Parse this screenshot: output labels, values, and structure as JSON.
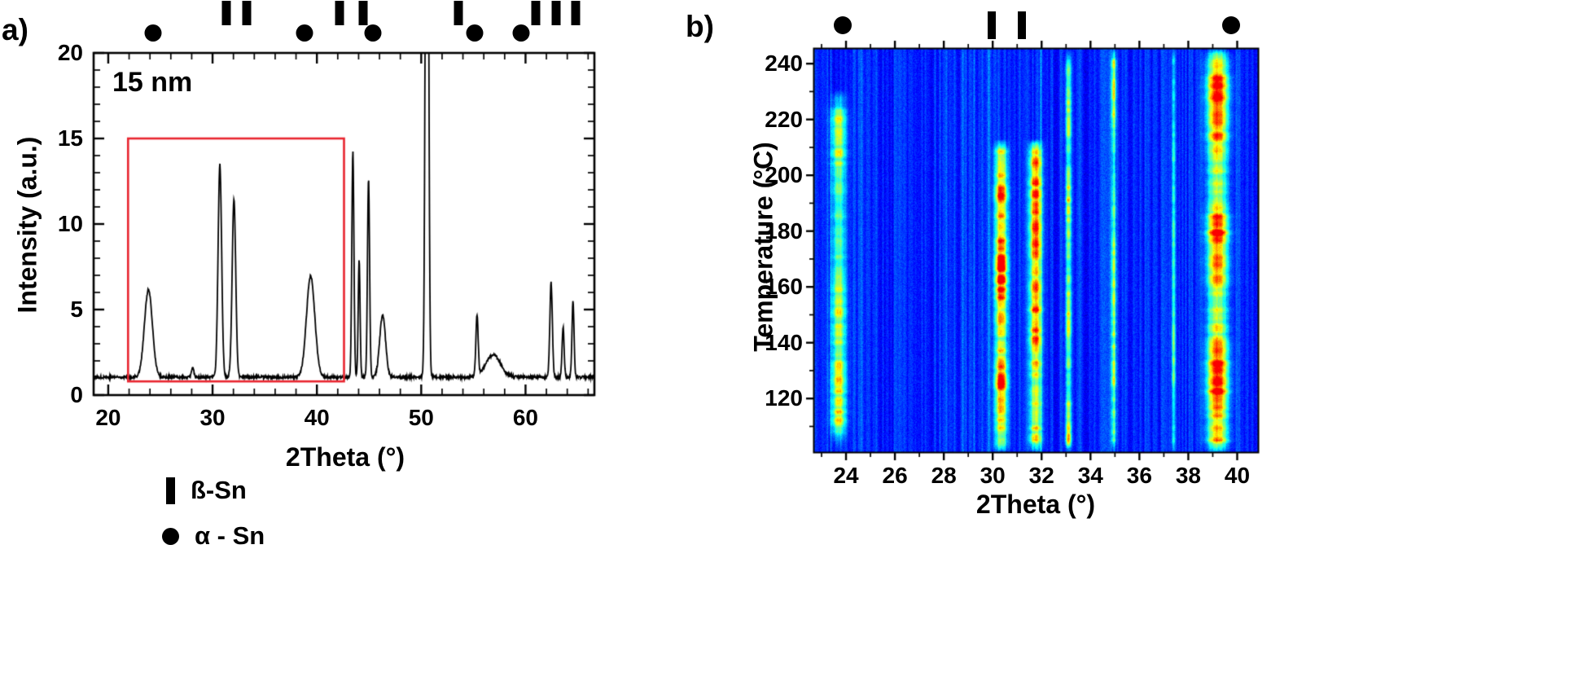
{
  "panels": {
    "a": {
      "label": "a)"
    },
    "b": {
      "label": "b)"
    }
  },
  "legend": {
    "beta": "ß-Sn",
    "alpha": "α - Sn"
  },
  "colors": {
    "curve": "#000000",
    "highlight_box": "#e8252f",
    "marker": "#000000"
  },
  "chart_data": [
    {
      "type": "line",
      "title": "15 nm",
      "xlabel": "2Theta (°)",
      "ylabel": "Intensity (a.u.)",
      "xlim": [
        18.6,
        66.6
      ],
      "ylim": [
        0,
        20
      ],
      "xticks": [
        20,
        30,
        40,
        50,
        60
      ],
      "yticks": [
        0,
        5,
        10,
        15,
        20
      ],
      "x_minor_step": 2,
      "y_minor_step": 1,
      "baseline": 1.05,
      "noise_amplitude": 0.08,
      "line_color": "#000000",
      "peaks": [
        {
          "two_theta": 23.85,
          "height": 5.1,
          "sigma": 0.38
        },
        {
          "two_theta": 28.1,
          "height": 0.6,
          "sigma": 0.1
        },
        {
          "two_theta": 30.7,
          "height": 12.4,
          "sigma": 0.17
        },
        {
          "two_theta": 32.05,
          "height": 10.4,
          "sigma": 0.17
        },
        {
          "two_theta": 39.4,
          "height": 5.9,
          "sigma": 0.4
        },
        {
          "two_theta": 43.45,
          "height": 13.2,
          "sigma": 0.1
        },
        {
          "two_theta": 44.05,
          "height": 6.8,
          "sigma": 0.09
        },
        {
          "two_theta": 44.95,
          "height": 11.6,
          "sigma": 0.1
        },
        {
          "two_theta": 46.3,
          "height": 3.6,
          "sigma": 0.28
        },
        {
          "two_theta": 50.55,
          "height": 55.0,
          "sigma": 0.13
        },
        {
          "two_theta": 55.35,
          "height": 3.5,
          "sigma": 0.11
        },
        {
          "two_theta": 56.9,
          "height": 1.3,
          "sigma": 0.7
        },
        {
          "two_theta": 62.45,
          "height": 5.5,
          "sigma": 0.12
        },
        {
          "two_theta": 63.6,
          "height": 2.9,
          "sigma": 0.1
        },
        {
          "two_theta": 64.55,
          "height": 4.4,
          "sigma": 0.1
        }
      ],
      "highlight_box": {
        "x_min": 21.9,
        "x_max": 42.6,
        "y_min": 0.8,
        "y_max": 15.0,
        "color": "#e8252f"
      },
      "beta_sn_marker_positions": [
        31.3,
        33.3,
        42.2,
        44.4,
        53.6,
        61.0,
        62.9,
        64.8
      ],
      "alpha_sn_marker_positions": [
        24.3,
        38.8,
        45.4,
        55.1,
        59.6
      ]
    },
    {
      "type": "heatmap",
      "xlabel": "2Theta (°)",
      "ylabel": "Temperature (°C)",
      "xlim": [
        22.7,
        40.85
      ],
      "ylim": [
        100.8,
        245.3
      ],
      "xticks": [
        24,
        26,
        28,
        30,
        32,
        34,
        36,
        38,
        40
      ],
      "yticks": [
        120,
        140,
        160,
        180,
        200,
        220,
        240
      ],
      "x_minor_step": 1,
      "y_minor_step": 10,
      "colormap": "jet",
      "background_level": 0.16,
      "noise_level": 0.06,
      "bands": [
        {
          "two_theta": 23.7,
          "sigma": 0.2,
          "strength": 0.42,
          "t_min": 100,
          "t_max": 231,
          "fade": 12
        },
        {
          "two_theta": 30.35,
          "sigma": 0.17,
          "strength": 0.64,
          "t_min": 100,
          "t_max": 213,
          "fade": 5
        },
        {
          "two_theta": 31.75,
          "sigma": 0.17,
          "strength": 0.62,
          "t_min": 100,
          "t_max": 213,
          "fade": 5
        },
        {
          "two_theta": 33.1,
          "sigma": 0.08,
          "strength": 0.42,
          "t_min": 100,
          "t_max": 246,
          "fade": 5
        },
        {
          "two_theta": 34.95,
          "sigma": 0.07,
          "strength": 0.36,
          "t_min": 100,
          "t_max": 246,
          "fade": 5
        },
        {
          "two_theta": 37.4,
          "sigma": 0.05,
          "strength": 0.28,
          "t_min": 100,
          "t_max": 246,
          "fade": 5
        },
        {
          "two_theta": 39.2,
          "sigma": 0.3,
          "strength": 0.66,
          "t_min": 100,
          "t_max": 246,
          "fade": 5
        }
      ],
      "beta_sn_marker_positions": [
        29.95,
        31.2
      ],
      "alpha_sn_marker_positions": [
        23.85,
        39.75
      ]
    }
  ]
}
